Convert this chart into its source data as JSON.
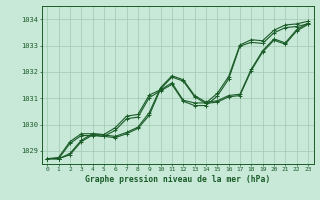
{
  "title": "Graphe pression niveau de la mer (hPa)",
  "bg_color": "#c8e8d8",
  "grid_color": "#a0c8b0",
  "line_color": "#1a5c28",
  "xlim": [
    -0.5,
    23.5
  ],
  "ylim": [
    1028.5,
    1034.5
  ],
  "yticks": [
    1029,
    1030,
    1031,
    1032,
    1033,
    1034
  ],
  "xticks": [
    0,
    1,
    2,
    3,
    4,
    5,
    6,
    7,
    8,
    9,
    10,
    11,
    12,
    13,
    14,
    15,
    16,
    17,
    18,
    19,
    20,
    21,
    22,
    23
  ],
  "series1": [
    1028.7,
    1028.7,
    1028.85,
    1029.35,
    1029.6,
    1029.55,
    1029.5,
    1029.65,
    1029.85,
    1030.35,
    1031.35,
    1031.8,
    1031.65,
    1031.05,
    1030.8,
    1030.85,
    1031.05,
    1031.1,
    1032.05,
    1032.75,
    1033.2,
    1033.05,
    1033.55,
    1033.8
  ],
  "series2": [
    1028.7,
    1028.7,
    1028.9,
    1029.4,
    1029.65,
    1029.6,
    1029.55,
    1029.7,
    1029.9,
    1030.45,
    1031.4,
    1031.85,
    1031.7,
    1031.1,
    1030.85,
    1030.9,
    1031.1,
    1031.15,
    1032.1,
    1032.8,
    1033.25,
    1033.1,
    1033.6,
    1033.85
  ],
  "series3": [
    1028.7,
    1028.75,
    1029.35,
    1029.65,
    1029.65,
    1029.62,
    1029.88,
    1030.32,
    1030.38,
    1031.12,
    1031.32,
    1031.58,
    1030.92,
    1030.82,
    1030.82,
    1031.18,
    1031.82,
    1033.02,
    1033.22,
    1033.18,
    1033.58,
    1033.78,
    1033.82,
    1033.92
  ],
  "series4": [
    1028.7,
    1028.7,
    1029.28,
    1029.58,
    1029.58,
    1029.55,
    1029.78,
    1030.22,
    1030.28,
    1031.02,
    1031.28,
    1031.52,
    1030.88,
    1030.72,
    1030.72,
    1031.08,
    1031.72,
    1032.98,
    1033.12,
    1033.08,
    1033.48,
    1033.68,
    1033.72,
    1033.82
  ]
}
